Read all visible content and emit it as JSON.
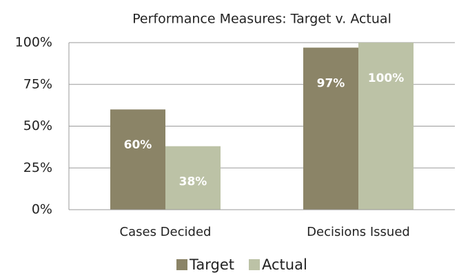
{
  "chart_data": {
    "type": "bar",
    "title": "Performance Measures: Target v. Actual",
    "categories": [
      "Cases Decided",
      "Decisions Issued"
    ],
    "series": [
      {
        "name": "Target",
        "color": "#8b8467",
        "values": [
          60,
          97
        ],
        "value_labels": [
          "60%",
          "97%"
        ]
      },
      {
        "name": "Actual",
        "color": "#bcc2a6",
        "values": [
          38,
          100
        ],
        "value_labels": [
          "38%",
          "100%"
        ]
      }
    ],
    "ylim": [
      0,
      100
    ],
    "yticks": [
      {
        "value": 0,
        "label": "0%"
      },
      {
        "value": 25,
        "label": "25%"
      },
      {
        "value": 50,
        "label": "50%"
      },
      {
        "value": 75,
        "label": "75%"
      },
      {
        "value": 100,
        "label": "100%"
      }
    ],
    "grid": true,
    "legend": "bottom"
  }
}
